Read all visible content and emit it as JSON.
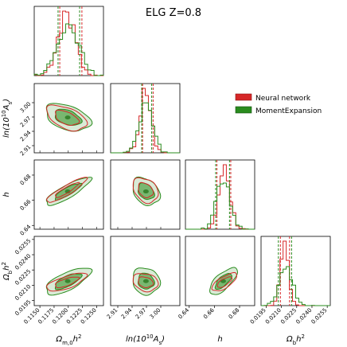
{
  "title": "ELG Z=0.8",
  "colors": {
    "nn": "#d62728",
    "me": "#2a8c1e"
  },
  "legend": {
    "placement": "top-right",
    "items": [
      "Neural network",
      "MomentExpansion"
    ]
  },
  "chart_data": {
    "type": "corner",
    "title": "ELG Z=0.8",
    "parameters": [
      {
        "key": "omh2",
        "label": "Ω_{m,0}h^2",
        "range": [
          0.114,
          0.1262
        ],
        "ticks": [
          "0.1150",
          "0.1175",
          "0.1200",
          "0.1225",
          "0.1250"
        ]
      },
      {
        "key": "lnAs",
        "label": "ln(10^{10}A_s)",
        "range": [
          2.895,
          3.04
        ],
        "ticks": [
          "2.91",
          "2.94",
          "2.97",
          "3.00"
        ]
      },
      {
        "key": "h",
        "label": "h",
        "range": [
          0.637,
          0.692
        ],
        "ticks": [
          "0.64",
          "0.66",
          "0.68"
        ]
      },
      {
        "key": "obh2",
        "label": "Ω_bh^2",
        "range": [
          0.019,
          0.0258
        ],
        "ticks": [
          "0.0195",
          "0.0210",
          "0.0225",
          "0.0240",
          "0.0255"
        ]
      }
    ],
    "series": [
      {
        "name": "Neural network",
        "color": "#d62728",
        "means": [
          0.1197,
          2.968,
          0.668,
          0.0213
        ],
        "sigmas": [
          0.0016,
          0.012,
          0.0045,
          0.0004
        ],
        "correlations": [
          [
            0,
            1,
            -0.5
          ],
          [
            0,
            2,
            0.9
          ],
          [
            0,
            3,
            0.7
          ],
          [
            1,
            2,
            -0.3
          ],
          [
            1,
            3,
            -0.2
          ],
          [
            2,
            3,
            0.7
          ]
        ],
        "quantile_lines": [
          [
            0.1185,
            0.1224
          ],
          [
            2.962,
            2.984
          ],
          [
            0.662,
            0.673
          ],
          [
            0.0209,
            0.0218
          ]
        ]
      },
      {
        "name": "MomentExpansion",
        "color": "#2a8c1e",
        "means": [
          0.1199,
          2.969,
          0.667,
          0.0214
        ],
        "sigmas": [
          0.0018,
          0.013,
          0.005,
          0.0006
        ],
        "correlations": [
          [
            0,
            1,
            -0.4
          ],
          [
            0,
            2,
            0.85
          ],
          [
            0,
            3,
            0.7
          ],
          [
            1,
            2,
            -0.3
          ],
          [
            1,
            3,
            -0.1
          ],
          [
            2,
            3,
            0.7
          ]
        ],
        "quantile_lines": [
          [
            0.1182,
            0.122
          ],
          [
            2.96,
            2.981
          ],
          [
            0.661,
            0.672
          ],
          [
            0.0207,
            0.022
          ]
        ]
      }
    ]
  }
}
